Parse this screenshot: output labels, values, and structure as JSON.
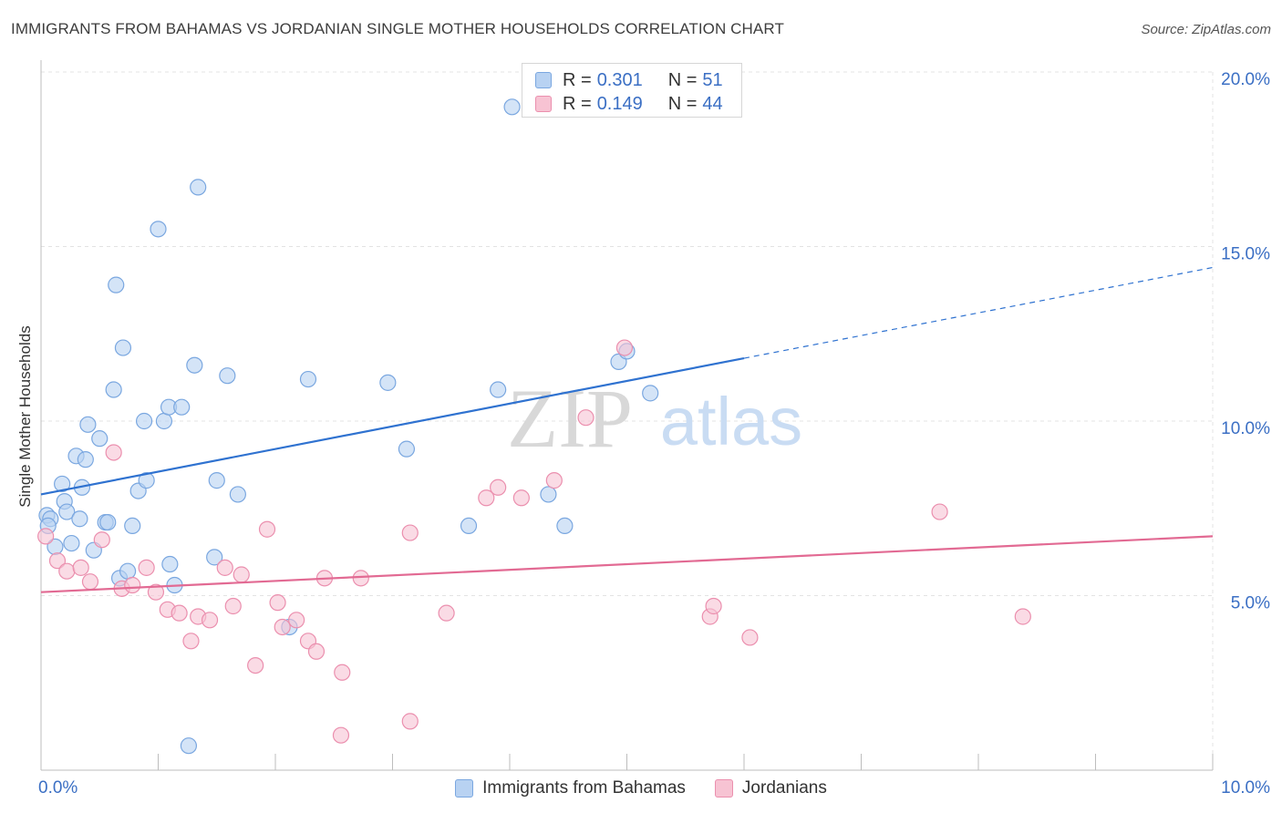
{
  "title": "IMMIGRANTS FROM BAHAMAS VS JORDANIAN SINGLE MOTHER HOUSEHOLDS CORRELATION CHART",
  "source": "Source: ZipAtlas.com",
  "watermark": {
    "zip": "ZIP",
    "atlas": "atlas"
  },
  "legend_top": [
    {
      "r_label": "R =",
      "r_value": "0.301",
      "n_label": "N =",
      "n_value": "51"
    },
    {
      "r_label": "R =",
      "r_value": "0.149",
      "n_label": "N =",
      "n_value": "44"
    }
  ],
  "colors": {
    "blue_fill": "#b8d2f2",
    "blue_stroke": "#7aa7e0",
    "blue_line": "#2f72d0",
    "pink_fill": "#f7c3d3",
    "pink_stroke": "#eb8fae",
    "pink_line": "#e26a93",
    "tick_text": "#3b6fc4",
    "grid": "#e3e3e3"
  },
  "chart_data": {
    "type": "scatter",
    "title": "IMMIGRANTS FROM BAHAMAS VS JORDANIAN SINGLE MOTHER HOUSEHOLDS CORRELATION CHART",
    "xlabel": "",
    "ylabel": "Single Mother Households",
    "xlim": [
      0,
      10
    ],
    "ylim": [
      0,
      20
    ],
    "x_tick_labels": [
      {
        "value": 0,
        "label": "0.0%"
      },
      {
        "value": 10,
        "label": "10.0%"
      }
    ],
    "y_tick_labels": [
      {
        "value": 5,
        "label": "5.0%"
      },
      {
        "value": 10,
        "label": "10.0%"
      },
      {
        "value": 15,
        "label": "15.0%"
      },
      {
        "value": 20,
        "label": "20.0%"
      }
    ],
    "grid": true,
    "legend_position": "bottom",
    "series": [
      {
        "name": "Immigrants from Bahamas",
        "color": "#b8d2f2",
        "points": [
          [
            0.05,
            7.3
          ],
          [
            0.08,
            7.2
          ],
          [
            0.06,
            7.0
          ],
          [
            0.12,
            6.4
          ],
          [
            0.18,
            8.2
          ],
          [
            0.2,
            7.7
          ],
          [
            0.22,
            7.4
          ],
          [
            0.26,
            6.5
          ],
          [
            0.3,
            9.0
          ],
          [
            0.33,
            7.2
          ],
          [
            0.35,
            8.1
          ],
          [
            0.38,
            8.9
          ],
          [
            0.4,
            9.9
          ],
          [
            0.45,
            6.3
          ],
          [
            0.5,
            9.5
          ],
          [
            0.55,
            7.1
          ],
          [
            0.57,
            7.1
          ],
          [
            0.62,
            10.9
          ],
          [
            0.64,
            13.9
          ],
          [
            0.67,
            5.5
          ],
          [
            0.7,
            12.1
          ],
          [
            0.74,
            5.7
          ],
          [
            0.78,
            7.0
          ],
          [
            0.83,
            8.0
          ],
          [
            0.88,
            10.0
          ],
          [
            0.9,
            8.3
          ],
          [
            1.0,
            15.5
          ],
          [
            1.05,
            10.0
          ],
          [
            1.09,
            10.4
          ],
          [
            1.1,
            5.9
          ],
          [
            1.14,
            5.3
          ],
          [
            1.2,
            10.4
          ],
          [
            1.26,
            0.7
          ],
          [
            1.31,
            11.6
          ],
          [
            1.34,
            16.7
          ],
          [
            1.48,
            6.1
          ],
          [
            1.5,
            8.3
          ],
          [
            1.59,
            11.3
          ],
          [
            1.68,
            7.9
          ],
          [
            2.12,
            4.1
          ],
          [
            2.28,
            11.2
          ],
          [
            2.96,
            11.1
          ],
          [
            3.12,
            9.2
          ],
          [
            3.65,
            7.0
          ],
          [
            3.9,
            10.9
          ],
          [
            4.02,
            19.0
          ],
          [
            4.33,
            7.9
          ],
          [
            4.47,
            7.0
          ],
          [
            4.93,
            11.7
          ],
          [
            5.0,
            12.0
          ],
          [
            5.2,
            10.8
          ]
        ]
      },
      {
        "name": "Jordanians",
        "color": "#f7c3d3",
        "points": [
          [
            0.04,
            6.7
          ],
          [
            0.14,
            6.0
          ],
          [
            0.22,
            5.7
          ],
          [
            0.34,
            5.8
          ],
          [
            0.42,
            5.4
          ],
          [
            0.52,
            6.6
          ],
          [
            0.62,
            9.1
          ],
          [
            0.69,
            5.2
          ],
          [
            0.78,
            5.3
          ],
          [
            0.9,
            5.8
          ],
          [
            0.98,
            5.1
          ],
          [
            1.08,
            4.6
          ],
          [
            1.18,
            4.5
          ],
          [
            1.28,
            3.7
          ],
          [
            1.34,
            4.4
          ],
          [
            1.44,
            4.3
          ],
          [
            1.57,
            5.8
          ],
          [
            1.64,
            4.7
          ],
          [
            1.71,
            5.6
          ],
          [
            1.83,
            3.0
          ],
          [
            1.93,
            6.9
          ],
          [
            2.02,
            4.8
          ],
          [
            2.06,
            4.1
          ],
          [
            2.18,
            4.3
          ],
          [
            2.28,
            3.7
          ],
          [
            2.35,
            3.4
          ],
          [
            2.42,
            5.5
          ],
          [
            2.57,
            2.8
          ],
          [
            2.73,
            5.5
          ],
          [
            2.56,
            1.0
          ],
          [
            3.15,
            6.8
          ],
          [
            3.15,
            1.4
          ],
          [
            3.46,
            4.5
          ],
          [
            3.8,
            7.8
          ],
          [
            3.9,
            8.1
          ],
          [
            4.1,
            7.8
          ],
          [
            4.38,
            8.3
          ],
          [
            4.65,
            10.1
          ],
          [
            4.98,
            12.1
          ],
          [
            5.71,
            4.4
          ],
          [
            5.74,
            4.7
          ],
          [
            6.05,
            3.8
          ],
          [
            7.67,
            7.4
          ],
          [
            8.38,
            4.4
          ]
        ]
      }
    ],
    "trend_lines": [
      {
        "series": "Immigrants from Bahamas",
        "x_solid": [
          0,
          6.0
        ],
        "x_dashed": [
          6.0,
          10.0
        ],
        "y_at_0": 7.9,
        "y_at_10": 14.4
      },
      {
        "series": "Jordanians",
        "x_solid": [
          0,
          10.0
        ],
        "y_at_0": 5.1,
        "y_at_10": 6.7
      }
    ]
  }
}
